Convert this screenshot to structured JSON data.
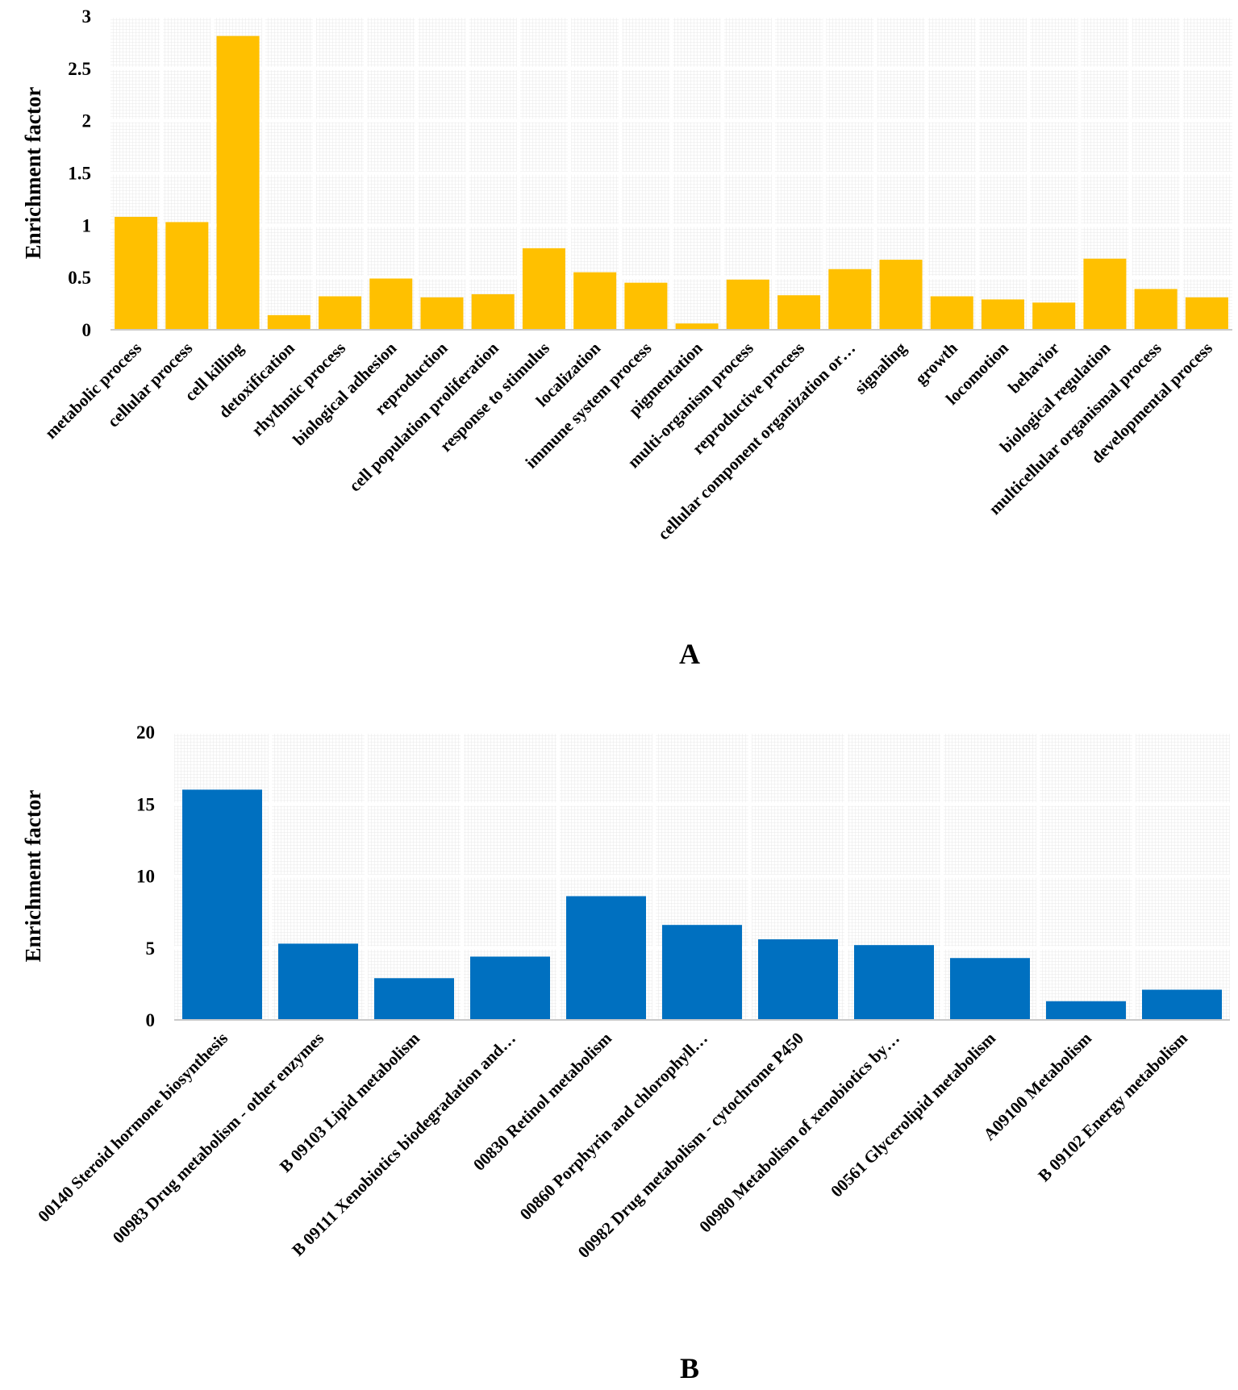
{
  "chart_data": [
    {
      "type": "bar",
      "panel_label": "A",
      "ylabel": "Enrichment  factor",
      "ylim": [
        0,
        3
      ],
      "yticks": [
        0,
        0.5,
        1,
        1.5,
        2,
        2.5,
        3
      ],
      "ytick_labels": [
        "0",
        "0.5",
        "1",
        "1.5",
        "2",
        "2.5",
        "3"
      ],
      "grid": true,
      "color": "#FFC000",
      "categories": [
        "metabolic process",
        "cellular process",
        "cell killing",
        "detoxification",
        "rhythmic process",
        "biological adhesion",
        "reproduction",
        "cell population proliferation",
        "response to stimulus",
        "localization",
        "immune system process",
        "pigmentation",
        "multi-organism process",
        "reproductive process",
        "cellular component organization or…",
        "signaling",
        "growth",
        "locomotion",
        "behavior",
        "biological regulation",
        "multicellular organismal process",
        "developmental process"
      ],
      "values": [
        1.08,
        1.03,
        2.81,
        0.14,
        0.32,
        0.49,
        0.31,
        0.34,
        0.78,
        0.55,
        0.45,
        0.06,
        0.48,
        0.33,
        0.58,
        0.67,
        0.32,
        0.29,
        0.26,
        0.68,
        0.39,
        0.31
      ]
    },
    {
      "type": "bar",
      "panel_label": "B",
      "ylabel": "Enrichment  factor",
      "ylim": [
        0,
        20
      ],
      "yticks": [
        0,
        5,
        10,
        15,
        20
      ],
      "ytick_labels": [
        "0",
        "5",
        "10",
        "15",
        "20"
      ],
      "grid": true,
      "color": "#0070C0",
      "categories": [
        "00140 Steroid hormone biosynthesis",
        "00983 Drug metabolism - other enzymes",
        "B  09103 Lipid metabolism",
        "B  09111 Xenobiotics biodegradation and…",
        "00830 Retinol metabolism",
        "00860 Porphyrin and chlorophyll…",
        "00982 Drug metabolism - cytochrome P450",
        "00980 Metabolism of xenobiotics by…",
        "00561 Glycerolipid metabolism",
        "A09100 Metabolism",
        "B  09102 Energy metabolism"
      ],
      "values": [
        16.0,
        5.3,
        2.9,
        4.4,
        8.6,
        6.6,
        5.6,
        5.2,
        4.3,
        1.3,
        2.1
      ]
    }
  ]
}
